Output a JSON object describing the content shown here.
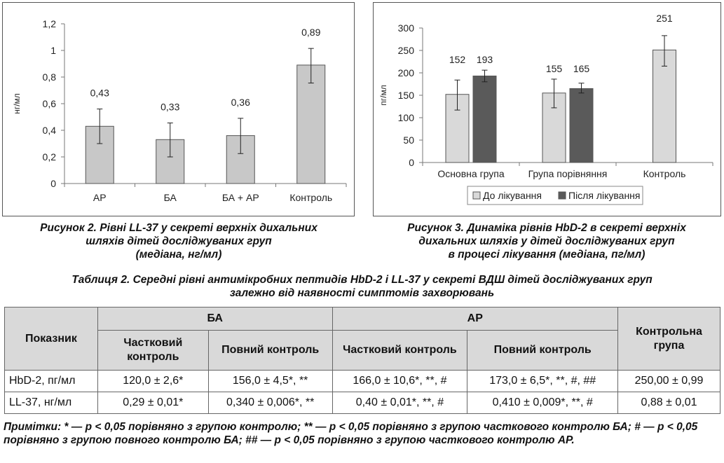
{
  "chart_data": [
    {
      "type": "bar",
      "ylabel": "нг/мл",
      "ylim": [
        0,
        1.2
      ],
      "yticks": [
        "0",
        "0,2",
        "0,4",
        "0,6",
        "0,8",
        "1",
        "1,2"
      ],
      "categories": [
        "АР",
        "БА",
        "БА + АР",
        "Контроль"
      ],
      "values": [
        0.43,
        0.33,
        0.36,
        0.89
      ],
      "data_labels": [
        "0,43",
        "0,33",
        "0,36",
        "0,89"
      ],
      "error_low": [
        0.3,
        0.2,
        0.225,
        0.755
      ],
      "error_high": [
        0.56,
        0.455,
        0.49,
        1.015
      ],
      "bar_color": "#c8c8c8",
      "grid": false
    },
    {
      "type": "bar",
      "ylabel": "пг/мл",
      "ylim": [
        0,
        300
      ],
      "yticks": [
        "0",
        "50",
        "100",
        "150",
        "200",
        "250",
        "300"
      ],
      "categories": [
        "Основна група",
        "Група порівняння",
        "Контроль"
      ],
      "series": [
        {
          "name": "До лікування",
          "color": "#d9d9d9",
          "values": [
            152,
            155,
            251
          ],
          "data_labels": [
            "152",
            "155",
            "251"
          ],
          "error_low": [
            117,
            122,
            215
          ],
          "error_high": [
            184,
            186,
            283
          ]
        },
        {
          "name": "Після лікування",
          "color": "#5a5a5a",
          "values": [
            193,
            165,
            null
          ],
          "data_labels": [
            "193",
            "165",
            ""
          ],
          "error_low": [
            180,
            155,
            null
          ],
          "error_high": [
            206,
            177,
            null
          ]
        }
      ],
      "legend_position": "bottom",
      "grid": false
    }
  ],
  "captions": {
    "fig2": [
      "Рисунок 2. Рівні LL-37 у секреті верхніх дихальних",
      "шляхів дітей досліджуваних груп",
      "(медіана, нг/мл)"
    ],
    "fig3": [
      "Рисунок 3. Динаміка рівнів HbD-2 в секреті верхніх",
      "дихальних шляхів у дітей досліджуваних груп",
      "в процесі лікування (медіана, пг/мл)"
    ]
  },
  "table": {
    "title": [
      "Таблиця 2. Середні рівні антимікробних пептидів HbD-2 і LL-37 у секреті ВДШ дітей досліджуваних груп",
      "залежно від наявності симптомів захворювань"
    ],
    "header_indicator": "Показник",
    "group_ba": "БА",
    "group_ar": "АР",
    "header_control": "Контрольна група",
    "sub_partial": "Частковий контроль",
    "sub_full": "Повний контроль",
    "sub_full_ar": "Повний контроль",
    "rows": [
      {
        "label": "HbD-2, пг/мл",
        "cells": [
          "120,0 ± 2,6*",
          "156,0 ± 4,5*, **",
          "166,0 ± 10,6*, **, #",
          "173,0 ± 6,5*, **, #, ##",
          "250,00 ± 0,99"
        ]
      },
      {
        "label": "LL-37, нг/мл",
        "cells": [
          "0,29 ± 0,01*",
          "0,340 ± 0,006*, **",
          "0,40 ± 0,01*, **, #",
          "0,410 ± 0,009*, **, #",
          "0,88 ± 0,01"
        ]
      }
    ]
  },
  "notes": "Примітки: * — р < 0,05 порівняно з групою контролю; ** — р < 0,05 порівняно з групою часткового контролю БА; # — р < 0,05 порівняно з групою повного контролю БА; ## — р < 0,05 порівняно з групою часткового контролю АР."
}
